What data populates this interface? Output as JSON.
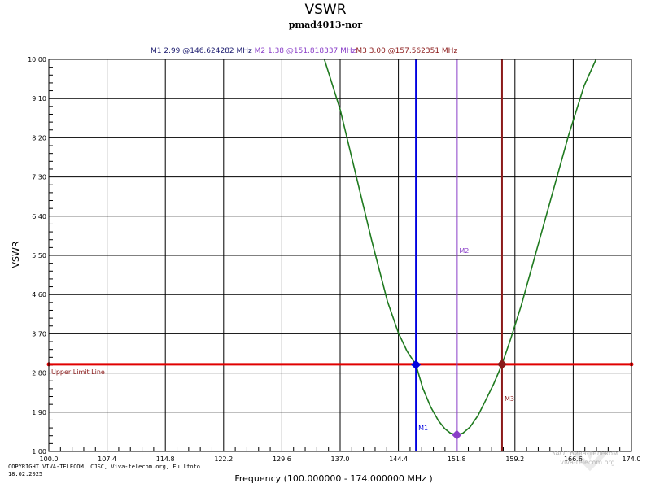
{
  "chart_data": {
    "type": "line",
    "title": "VSWR",
    "subtitle": "pmad4013-nor",
    "xlabel": "Frequency (100.000000 - 174.000000 MHz )",
    "ylabel": "VSWR",
    "xlim": [
      100,
      174
    ],
    "ylim": [
      1,
      10
    ],
    "x_ticks": [
      "100.0",
      "107.4",
      "114.8",
      "122.2",
      "129.6",
      "137.0",
      "144.4",
      "151.8",
      "159.2",
      "166.6",
      "174.0"
    ],
    "y_ticks": [
      "1.00",
      "1.90",
      "2.80",
      "3.70",
      "4.60",
      "5.50",
      "6.40",
      "7.30",
      "8.20",
      "9.10",
      "10.00"
    ],
    "grid": true,
    "series": [
      {
        "name": "VSWR",
        "color": "#1f7a1f",
        "x": [
          135.0,
          137.0,
          139.0,
          141.0,
          143.0,
          144.4,
          145.5,
          146.624,
          147.5,
          148.5,
          149.5,
          150.3,
          151.0,
          151.818,
          152.6,
          153.5,
          154.5,
          155.5,
          156.5,
          157.562,
          158.6,
          160.0,
          162.0,
          164.0,
          166.0,
          168.0,
          169.5
        ],
        "values": [
          10.0,
          8.85,
          7.35,
          5.85,
          4.45,
          3.72,
          3.3,
          2.99,
          2.45,
          2.02,
          1.7,
          1.52,
          1.42,
          1.38,
          1.42,
          1.56,
          1.82,
          2.18,
          2.55,
          3.0,
          3.55,
          4.35,
          5.65,
          6.95,
          8.25,
          9.4,
          10.0
        ]
      }
    ],
    "upper_limit": {
      "label": "Upper Limit Line",
      "value": 3.0,
      "color": "#e00000",
      "label_color": "#8b1a1a"
    },
    "markers": [
      {
        "name": "M1",
        "vswr_text": "2.99",
        "freq_text": "146.624282",
        "x": 146.624282,
        "y": 2.99,
        "color": "#0000e0"
      },
      {
        "name": "M2",
        "vswr_text": "1.38",
        "freq_text": "151.818337",
        "x": 151.818337,
        "y": 1.38,
        "color": "#8a3fc8"
      },
      {
        "name": "M3",
        "vswr_text": "3.00",
        "freq_text": "157.562351",
        "x": 157.562351,
        "y": 3.0,
        "color": "#8b1a1a"
      }
    ],
    "marker_header_color": "#1a1a6e",
    "marker_label_positions": {
      "M1": "bottom",
      "M2": "middle",
      "M3": "lower"
    }
  },
  "footer": {
    "copyright": "COPYRIGHT VIVA-TELECOM, CJSC, Viva-telecom.org, Fullfoto",
    "date": "18.02.2025"
  },
  "watermark": {
    "line1": "ЗАО \"Вива-Телеком\"",
    "line2": "viva-telecom.org"
  },
  "colors": {
    "plot_bg": "#ffffff",
    "grid": "#000000",
    "frame": "#000000"
  }
}
